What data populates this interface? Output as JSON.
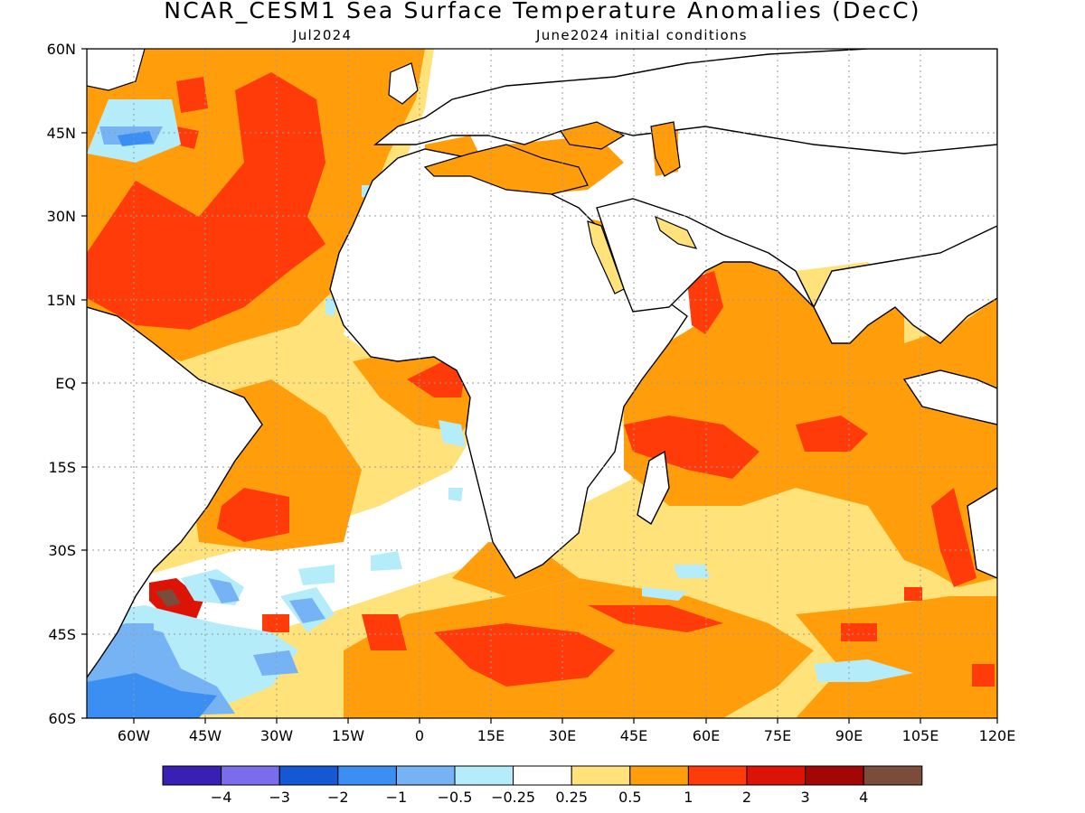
{
  "title": "NCAR_CESM1 Sea Surface Temperature Anomalies (DecC)",
  "subtitle_left": "Jul2024",
  "subtitle_right": "June2024 initial conditions",
  "lat_ticks": [
    "60N",
    "45N",
    "30N",
    "15N",
    "EQ",
    "15S",
    "30S",
    "45S",
    "60S"
  ],
  "lon_ticks": [
    "60W",
    "45W",
    "30W",
    "15W",
    "0",
    "15E",
    "30E",
    "45E",
    "60E",
    "75E",
    "90E",
    "105E",
    "120E"
  ],
  "colorbar": {
    "colors": [
      "#3a1fb5",
      "#7b6ceb",
      "#1558d4",
      "#3b8ff2",
      "#75b3f5",
      "#b4ecfa",
      "#ffffff",
      "#ffe27a",
      "#ff9e0a",
      "#ff3b0a",
      "#dd1405",
      "#a40605",
      "#7b4b3b"
    ],
    "labels": [
      "-4",
      "-3",
      "-2",
      "-1",
      "-0.5",
      "-0.25",
      "0.25",
      "0.5",
      "1",
      "2",
      "3",
      "4"
    ]
  }
}
